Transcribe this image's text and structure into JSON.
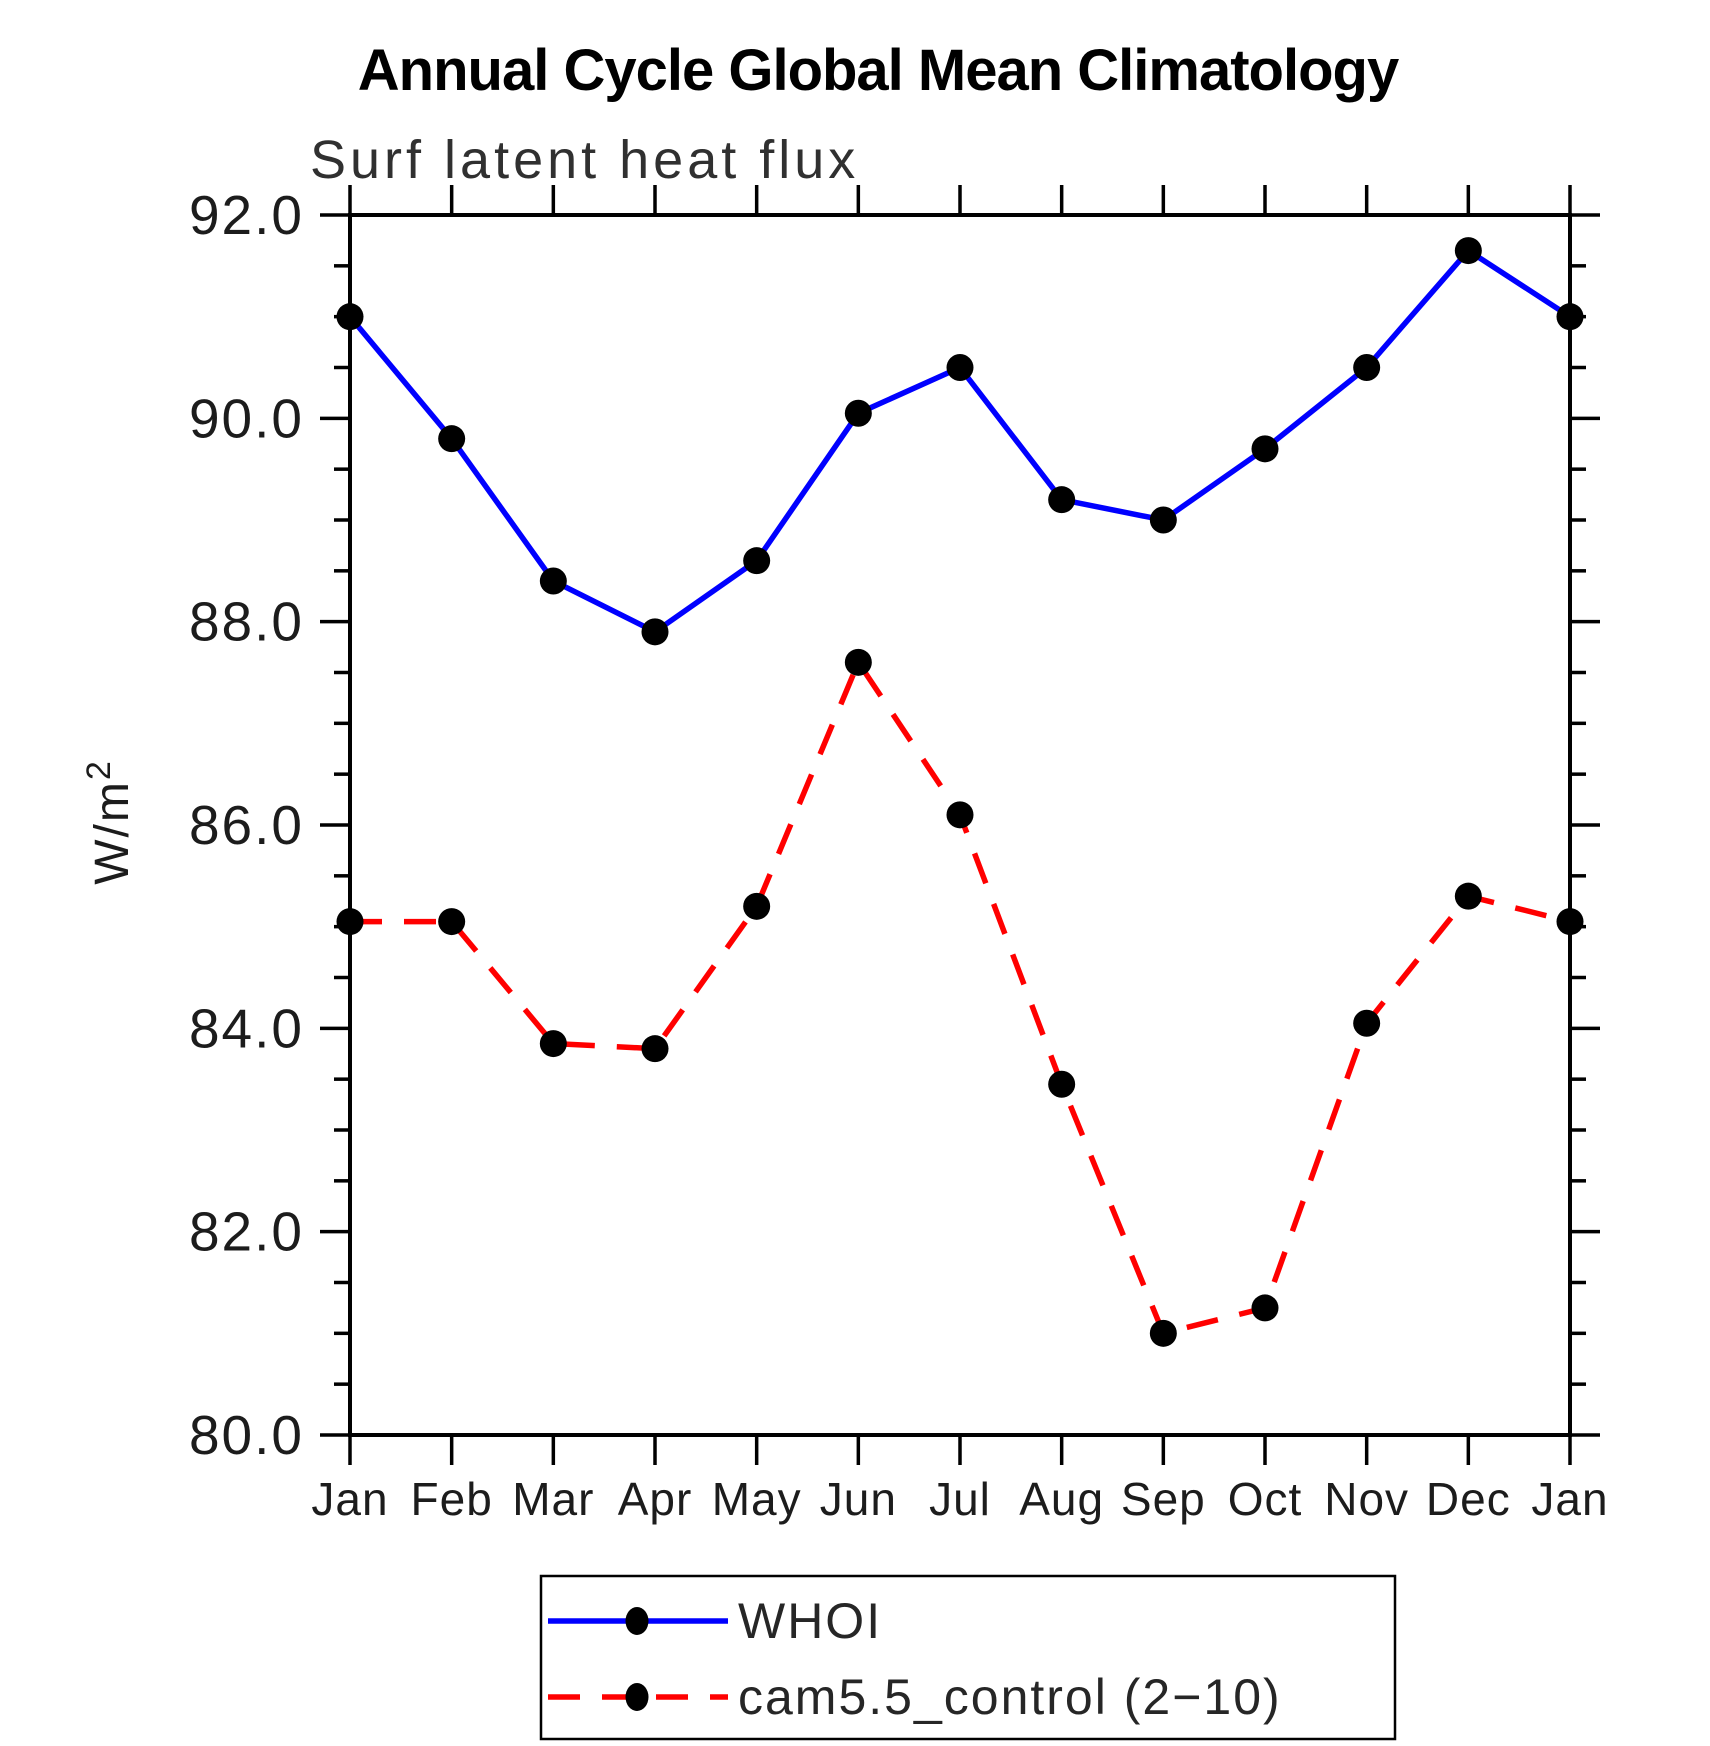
{
  "chart_data": {
    "type": "line",
    "title": "Annual Cycle Global Mean Climatology",
    "subtitle": "Surf latent heat flux",
    "ylabel": "W/m^2",
    "ylabel_base": "W/m",
    "ylabel_exponent": "2",
    "xlabel": "",
    "categories": [
      "Jan",
      "Feb",
      "Mar",
      "Apr",
      "May",
      "Jun",
      "Jul",
      "Aug",
      "Sep",
      "Oct",
      "Nov",
      "Dec",
      "Jan"
    ],
    "ylim": [
      80.0,
      92.0
    ],
    "ytick_major_step": 2.0,
    "ytick_minor_step": 0.5,
    "ytick_labels": [
      "80.0",
      "82.0",
      "84.0",
      "86.0",
      "88.0",
      "90.0",
      "92.0"
    ],
    "grid": false,
    "legend_position": "bottom",
    "axis_color": "#000000",
    "marker_shape": "circle",
    "series": [
      {
        "name": "WHOI",
        "color": "#0000ff",
        "line_style": "solid",
        "marker_color": "#000000",
        "values": [
          91.0,
          89.8,
          88.4,
          87.9,
          88.6,
          90.05,
          90.5,
          89.2,
          89.0,
          89.7,
          90.5,
          91.65,
          91.0
        ]
      },
      {
        "name": "cam5.5_control (2−10)",
        "color": "#ff0000",
        "line_style": "dashed",
        "marker_color": "#000000",
        "values": [
          85.05,
          85.05,
          83.85,
          83.8,
          85.2,
          87.6,
          86.1,
          83.45,
          81.0,
          81.25,
          84.05,
          85.3,
          85.05
        ]
      }
    ]
  }
}
